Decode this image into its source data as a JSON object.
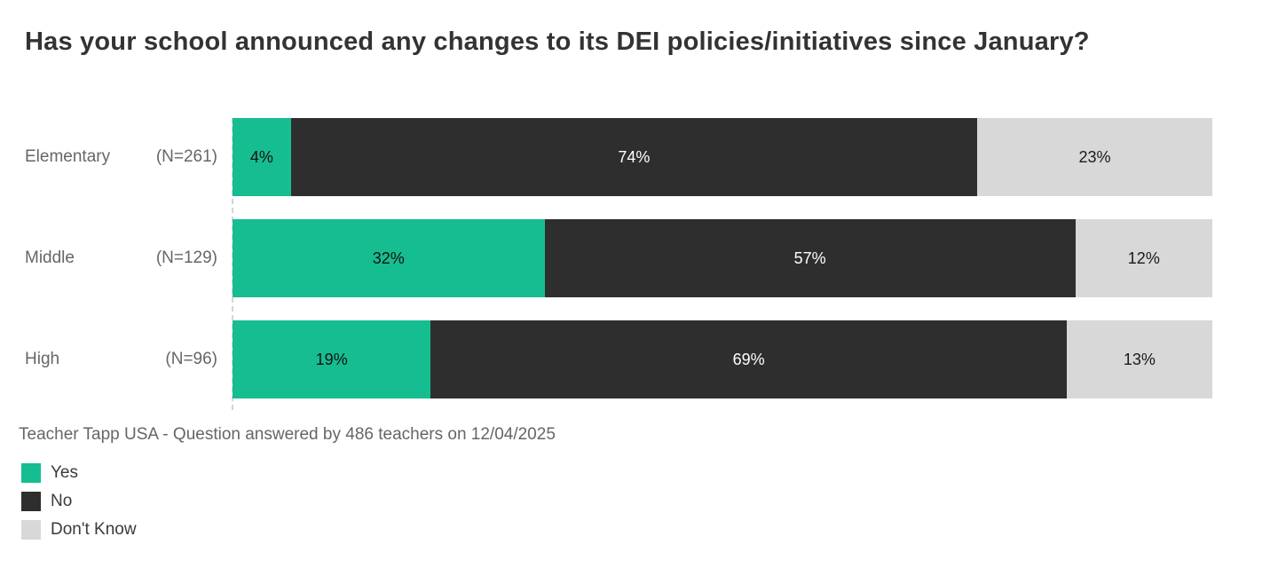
{
  "title": "Has your school announced any changes to its DEI policies/initiatives since January?",
  "footer": "Teacher Tapp USA - Question answered by 486 teachers on 12/04/2025",
  "colors": {
    "yes": "#16BD90",
    "no": "#2E2E2E",
    "dont_know": "#D8D8D8",
    "title_text": "#333333",
    "axis_label_text": "#666666",
    "footer_text": "#666666"
  },
  "chart_data": {
    "type": "bar",
    "orientation": "horizontal-stacked",
    "title": "Has your school announced any changes to its DEI policies/initiatives since January?",
    "categories": [
      "Elementary",
      "Middle",
      "High"
    ],
    "sample_sizes": [
      "(N=261)",
      "(N=129)",
      "(N=96)"
    ],
    "series": [
      {
        "name": "Yes",
        "color": "#16BD90",
        "text_color": "#111111",
        "values": [
          4,
          32,
          19
        ]
      },
      {
        "name": "No",
        "color": "#2E2E2E",
        "text_color": "#ffffff",
        "values": [
          74,
          57,
          69
        ]
      },
      {
        "name": "Don't Know",
        "color": "#D8D8D8",
        "text_color": "#1a1a1a",
        "values": [
          23,
          12,
          13
        ]
      }
    ],
    "value_suffix": "%",
    "xlim": [
      0,
      100
    ],
    "grid": false,
    "legend_position": "bottom-left",
    "source_caption": "Teacher Tapp USA - Question answered by 486 teachers on 12/04/2025"
  },
  "legend": [
    {
      "label": "Yes",
      "color": "#16BD90"
    },
    {
      "label": "No",
      "color": "#2E2E2E"
    },
    {
      "label": "Don't Know",
      "color": "#D8D8D8"
    }
  ]
}
